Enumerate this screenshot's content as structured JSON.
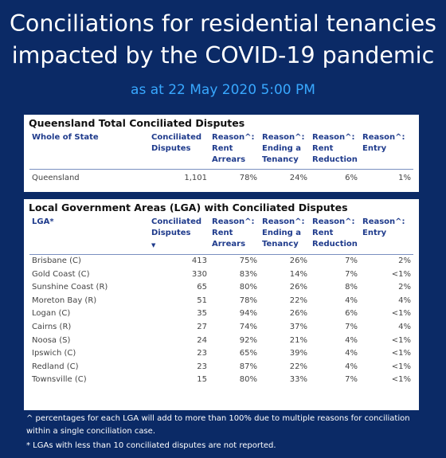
{
  "header": {
    "title_line1": "Conciliations for residential tenancies",
    "title_line2": "impacted by the COVID-19 pandemic",
    "subtitle": "as at 22 May 2020 5:00 PM"
  },
  "state_table": {
    "title": "Queensland Total Conciliated Disputes",
    "columns": [
      "Whole of State",
      "Conciliated Disputes",
      "Reason^: Rent Arrears",
      "Reason^: Ending a Tenancy",
      "Reason^: Rent Reduction",
      "Reason^: Entry"
    ],
    "row": [
      "Queensland",
      "1,101",
      "78%",
      "24%",
      "6%",
      "1%"
    ]
  },
  "lga_table": {
    "title": "Local Government Areas (LGA) with Conciliated Disputes",
    "columns": [
      "LGA*",
      "Conciliated Disputes",
      "Reason^: Rent Arrears",
      "Reason^: Ending a Tenancy",
      "Reason^: Rent Reduction",
      "Reason^: Entry"
    ],
    "sort_icon": "sort-descending-icon",
    "rows": [
      [
        "Brisbane (C)",
        "413",
        "75%",
        "26%",
        "7%",
        "2%"
      ],
      [
        "Gold Coast (C)",
        "330",
        "83%",
        "14%",
        "7%",
        "<1%"
      ],
      [
        "Sunshine Coast (R)",
        "65",
        "80%",
        "26%",
        "8%",
        "2%"
      ],
      [
        "Moreton Bay (R)",
        "51",
        "78%",
        "22%",
        "4%",
        "4%"
      ],
      [
        "Logan (C)",
        "35",
        "94%",
        "26%",
        "6%",
        "<1%"
      ],
      [
        "Cairns (R)",
        "27",
        "74%",
        "37%",
        "7%",
        "4%"
      ],
      [
        "Noosa (S)",
        "24",
        "92%",
        "21%",
        "4%",
        "<1%"
      ],
      [
        "Ipswich (C)",
        "23",
        "65%",
        "39%",
        "4%",
        "<1%"
      ],
      [
        "Redland (C)",
        "23",
        "87%",
        "22%",
        "4%",
        "<1%"
      ],
      [
        "Townsville (C)",
        "15",
        "80%",
        "33%",
        "7%",
        "<1%"
      ]
    ]
  },
  "footnotes": {
    "caret": "^ percentages for each LGA will add to more than 100% due to multiple reasons for conciliation within a single conciliation case.",
    "asterisk": "* LGAs with less than 10 conciliated disputes are not reported."
  },
  "colors": {
    "background": "#0b2a66",
    "subtitle": "#38a8ff",
    "header_text": "#1f3b8c"
  }
}
